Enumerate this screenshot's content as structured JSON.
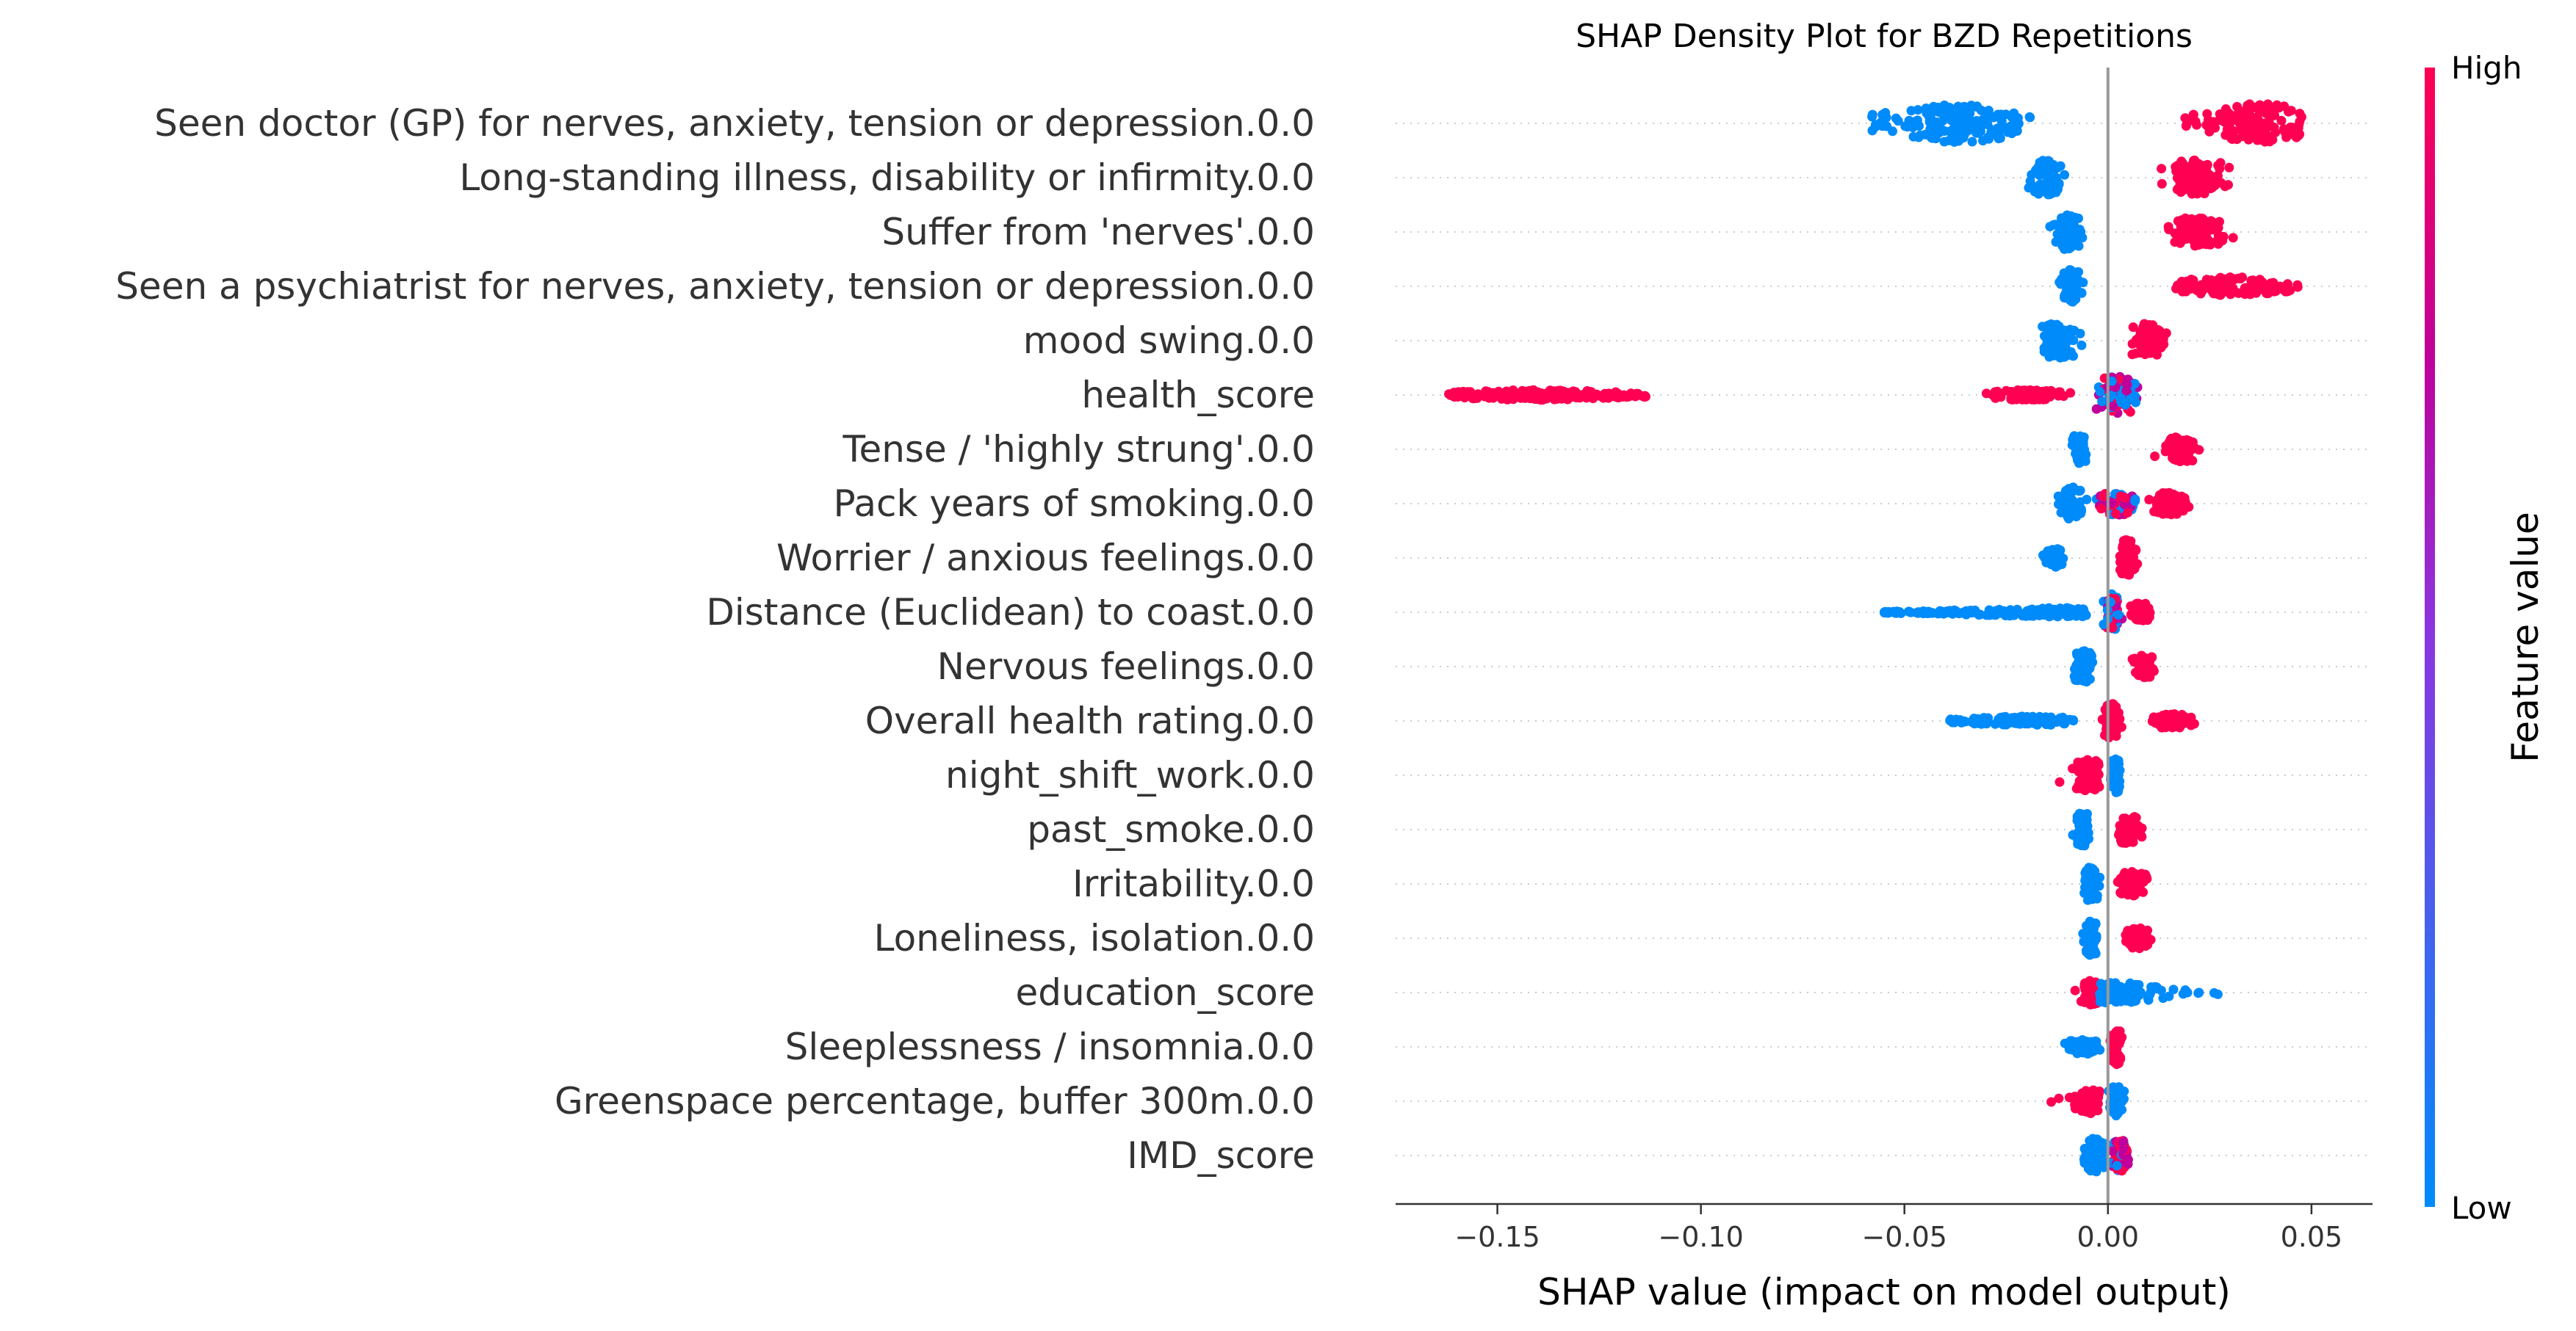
{
  "chart_data": {
    "type": "scatter",
    "subtype": "shap-beeswarm",
    "title": "SHAP Density Plot for BZD Repetitions",
    "xlabel": "SHAP value (impact on model output)",
    "ylabel": "",
    "xlim": [
      -0.175,
      0.065
    ],
    "xticks": [
      -0.15,
      -0.1,
      -0.05,
      0.0,
      0.05
    ],
    "xtick_labels": [
      "−0.15",
      "−0.10",
      "−0.05",
      "0.00",
      "0.05"
    ],
    "grid": "dotted horizontal row guides",
    "colorbar": {
      "label": "Feature value",
      "high_label": "High",
      "low_label": "Low",
      "high_color": "#ff0052",
      "low_color": "#008bfb",
      "mid_color": "#c0009a"
    },
    "features": [
      {
        "name": "Seen doctor (GP) for nerves, anxiety, tension or depression.0.0",
        "clusters": [
          {
            "range": [
              -0.058,
              -0.019
            ],
            "center": -0.037,
            "width": 0.92,
            "color": "low"
          },
          {
            "range": [
              0.018,
              0.048
            ],
            "center": 0.037,
            "width": 0.95,
            "color": "high"
          }
        ]
      },
      {
        "name": "Long-standing illness, disability or infirmity.0.0",
        "clusters": [
          {
            "range": [
              -0.02,
              -0.007
            ],
            "center": -0.015,
            "width": 0.85,
            "color": "low"
          },
          {
            "range": [
              0.008,
              0.034
            ],
            "center": 0.022,
            "width": 0.85,
            "color": "high"
          }
        ]
      },
      {
        "name": "Suffer from 'nerves'.0.0",
        "clusters": [
          {
            "range": [
              -0.018,
              -0.006
            ],
            "center": -0.01,
            "width": 0.85,
            "color": "low"
          },
          {
            "range": [
              0.008,
              0.034
            ],
            "center": 0.022,
            "width": 0.7,
            "color": "high"
          }
        ]
      },
      {
        "name": "Seen a psychiatrist for nerves, anxiety, tension or depression.0.0",
        "clusters": [
          {
            "range": [
              -0.013,
              -0.005
            ],
            "center": -0.009,
            "width": 0.85,
            "color": "low"
          },
          {
            "range": [
              0.016,
              0.047
            ],
            "center": 0.03,
            "width": 0.45,
            "color": "high"
          }
        ]
      },
      {
        "name": "mood swing.0.0",
        "clusters": [
          {
            "range": [
              -0.022,
              -0.005
            ],
            "center": -0.012,
            "width": 0.85,
            "color": "low"
          },
          {
            "range": [
              0.003,
              0.018
            ],
            "center": 0.01,
            "width": 0.85,
            "color": "high"
          }
        ]
      },
      {
        "name": "health_score",
        "clusters": [
          {
            "range": [
              -0.162,
              -0.113
            ],
            "center": -0.14,
            "width": 0.25,
            "color": "high"
          },
          {
            "range": [
              -0.035,
              -0.007
            ],
            "center": -0.02,
            "width": 0.25,
            "color": "high"
          },
          {
            "range": [
              -0.007,
              0.014
            ],
            "center": 0.002,
            "width": 0.9,
            "color": "mix"
          }
        ]
      },
      {
        "name": "Tense / 'highly strung'.0.0",
        "clusters": [
          {
            "range": [
              -0.01,
              -0.004
            ],
            "center": -0.007,
            "width": 0.75,
            "color": "low"
          },
          {
            "range": [
              0.011,
              0.028
            ],
            "center": 0.018,
            "width": 0.6,
            "color": "high"
          }
        ]
      },
      {
        "name": "Pack years of smoking.0.0",
        "clusters": [
          {
            "range": [
              -0.016,
              -0.004
            ],
            "center": -0.009,
            "width": 0.8,
            "color": "low"
          },
          {
            "range": [
              -0.004,
              0.012
            ],
            "center": 0.002,
            "width": 0.55,
            "color": "mix"
          },
          {
            "range": [
              0.01,
              0.025
            ],
            "center": 0.015,
            "width": 0.55,
            "color": "high"
          }
        ]
      },
      {
        "name": "Worrier / anxious feelings.0.0",
        "clusters": [
          {
            "range": [
              -0.018,
              -0.008
            ],
            "center": -0.013,
            "width": 0.45,
            "color": "low"
          },
          {
            "range": [
              0.002,
              0.009
            ],
            "center": 0.005,
            "width": 0.9,
            "color": "high"
          }
        ]
      },
      {
        "name": "Distance (Euclidean) to coast.0.0",
        "clusters": [
          {
            "range": [
              -0.055,
              -0.005
            ],
            "center": -0.01,
            "width": 0.22,
            "color": "low"
          },
          {
            "range": [
              -0.003,
              0.005
            ],
            "center": 0.001,
            "width": 0.9,
            "color": "mix"
          },
          {
            "range": [
              0.004,
              0.013
            ],
            "center": 0.008,
            "width": 0.45,
            "color": "high"
          }
        ]
      },
      {
        "name": "Nervous feelings.0.0",
        "clusters": [
          {
            "range": [
              -0.011,
              -0.003
            ],
            "center": -0.006,
            "width": 0.8,
            "color": "low"
          },
          {
            "range": [
              0.005,
              0.014
            ],
            "center": 0.009,
            "width": 0.55,
            "color": "high"
          }
        ]
      },
      {
        "name": "Overall health rating.0.0",
        "clusters": [
          {
            "range": [
              -0.039,
              -0.008
            ],
            "center": -0.02,
            "width": 0.22,
            "color": "low"
          },
          {
            "range": [
              -0.002,
              0.005
            ],
            "center": 0.001,
            "width": 0.85,
            "color": "high"
          },
          {
            "range": [
              0.007,
              0.025
            ],
            "center": 0.015,
            "width": 0.35,
            "color": "high"
          }
        ]
      },
      {
        "name": "night_shift_work.0.0",
        "clusters": [
          {
            "range": [
              -0.015,
              -0.001
            ],
            "center": -0.005,
            "width": 0.75,
            "color": "high"
          },
          {
            "range": [
              0.0,
              0.004
            ],
            "center": 0.002,
            "width": 0.85,
            "color": "low"
          }
        ]
      },
      {
        "name": "past_smoke.0.0",
        "clusters": [
          {
            "range": [
              -0.009,
              -0.003
            ],
            "center": -0.006,
            "width": 0.85,
            "color": "low"
          },
          {
            "range": [
              0.001,
              0.011
            ],
            "center": 0.005,
            "width": 0.7,
            "color": "high"
          }
        ]
      },
      {
        "name": "Irritability.0.0",
        "clusters": [
          {
            "range": [
              -0.008,
              -0.002
            ],
            "center": -0.004,
            "width": 0.85,
            "color": "low"
          },
          {
            "range": [
              0.002,
              0.014
            ],
            "center": 0.006,
            "width": 0.6,
            "color": "high"
          }
        ]
      },
      {
        "name": "Loneliness, isolation.0.0",
        "clusters": [
          {
            "range": [
              -0.008,
              -0.002
            ],
            "center": -0.004,
            "width": 0.85,
            "color": "low"
          },
          {
            "range": [
              0.002,
              0.013
            ],
            "center": 0.007,
            "width": 0.5,
            "color": "high"
          }
        ]
      },
      {
        "name": "education_score",
        "clusters": [
          {
            "range": [
              -0.01,
              -0.002
            ],
            "center": -0.004,
            "width": 0.6,
            "color": "high"
          },
          {
            "range": [
              -0.002,
              0.027
            ],
            "center": 0.001,
            "width": 0.5,
            "color": "low"
          }
        ]
      },
      {
        "name": "Sleeplessness / insomnia.0.0",
        "clusters": [
          {
            "range": [
              -0.015,
              -0.002
            ],
            "center": -0.006,
            "width": 0.35,
            "color": "low"
          },
          {
            "range": [
              0.0,
              0.005
            ],
            "center": 0.002,
            "width": 0.85,
            "color": "high"
          }
        ]
      },
      {
        "name": "Greenspace percentage, buffer 300m.0.0",
        "clusters": [
          {
            "range": [
              -0.014,
              -0.002
            ],
            "center": -0.005,
            "width": 0.6,
            "color": "high"
          },
          {
            "range": [
              -0.001,
              0.005
            ],
            "center": 0.002,
            "width": 0.75,
            "color": "low"
          }
        ]
      },
      {
        "name": "IMD_score",
        "clusters": [
          {
            "range": [
              -0.008,
              0.001
            ],
            "center": -0.003,
            "width": 0.85,
            "color": "low"
          },
          {
            "range": [
              0.0,
              0.008
            ],
            "center": 0.003,
            "width": 0.75,
            "color": "mix"
          }
        ]
      }
    ]
  }
}
